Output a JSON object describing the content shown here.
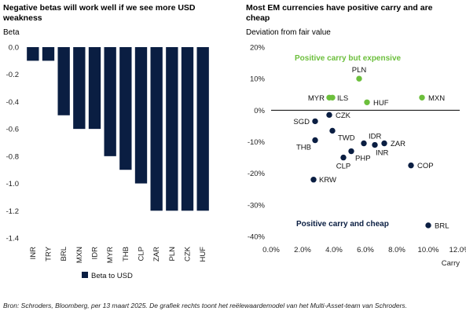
{
  "colors": {
    "navy": "#0a1e42",
    "green": "#6cbf3c",
    "axis": "#888888",
    "zero": "#000000"
  },
  "left": {
    "title": "Negative betas will work well if we see more USD weakness",
    "ylabel": "Beta",
    "legend": "Beta to USD"
  },
  "right": {
    "title": "Most EM currencies have positive carry and are cheap",
    "ylabel": "Deviation from fair value",
    "xlabel": "Carry",
    "annotation_expensive": "Positive carry but expensive",
    "annotation_cheap": "Positive carry and cheap"
  },
  "source": "Bron: Schroders, Bloomberg, per 13 maart 2025. De grafiek rechts toont het reëlewaardemodel van het Multi-Asset-team van Schroders.",
  "chart_data": [
    {
      "type": "bar",
      "title": "Negative betas will work well if we see more USD weakness",
      "ylabel": "Beta",
      "ylim": [
        -1.4,
        0.0
      ],
      "yticks": [
        0.0,
        -0.2,
        -0.4,
        -0.6,
        -0.8,
        -1.0,
        -1.2,
        -1.4
      ],
      "ytick_labels": [
        "0.0",
        "-0.2",
        "-0.4",
        "-0.6",
        "-0.8",
        "-1.0",
        "-1.2",
        "-1.4"
      ],
      "categories": [
        "INR",
        "TRY",
        "BRL",
        "MXN",
        "IDR",
        "MYR",
        "THB",
        "CLP",
        "ZAR",
        "PLN",
        "CZK",
        "HUF"
      ],
      "series": [
        {
          "name": "Beta to USD",
          "values": [
            -0.1,
            -0.1,
            -0.5,
            -0.6,
            -0.6,
            -0.8,
            -0.9,
            -1.0,
            -1.2,
            -1.2,
            -1.2,
            -1.2
          ]
        }
      ],
      "legend": "bottom",
      "grid": false
    },
    {
      "type": "scatter",
      "title": "Most EM currencies have positive carry and are cheap",
      "xlabel": "Carry",
      "ylabel": "Deviation from fair value",
      "xlim": [
        0.0,
        12.0
      ],
      "ylim": [
        -40,
        20
      ],
      "xticks": [
        0,
        2,
        4,
        6,
        8,
        10,
        12
      ],
      "xtick_labels": [
        "0.0%",
        "2.0%",
        "4.0%",
        "6.0%",
        "8.0%",
        "10.0%",
        "12.0%"
      ],
      "yticks": [
        20,
        10,
        0,
        -10,
        -20,
        -30,
        -40
      ],
      "ytick_labels": [
        "20%",
        "10%",
        "0%",
        "-10%",
        "-20%",
        "-30%",
        "-40%"
      ],
      "grid": false,
      "points": [
        {
          "label": "PLN",
          "x": 5.6,
          "y": 10,
          "group": "expensive"
        },
        {
          "label": "MYR",
          "x": 3.7,
          "y": 4,
          "group": "expensive"
        },
        {
          "label": "ILS",
          "x": 3.9,
          "y": 4,
          "group": "expensive"
        },
        {
          "label": "HUF",
          "x": 6.1,
          "y": 2.5,
          "group": "expensive"
        },
        {
          "label": "MXN",
          "x": 9.6,
          "y": 4,
          "group": "expensive"
        },
        {
          "label": "CZK",
          "x": 3.7,
          "y": -1.5,
          "group": "cheap"
        },
        {
          "label": "SGD",
          "x": 2.8,
          "y": -3.5,
          "group": "cheap"
        },
        {
          "label": "TWD",
          "x": 3.9,
          "y": -6.5,
          "group": "cheap"
        },
        {
          "label": "THB",
          "x": 2.8,
          "y": -9.5,
          "group": "cheap"
        },
        {
          "label": "IDR",
          "x": 5.9,
          "y": -10.5,
          "group": "cheap"
        },
        {
          "label": "ZAR",
          "x": 7.2,
          "y": -10.5,
          "group": "cheap"
        },
        {
          "label": "INR",
          "x": 6.6,
          "y": -11,
          "group": "cheap"
        },
        {
          "label": "PHP",
          "x": 5.1,
          "y": -13,
          "group": "cheap"
        },
        {
          "label": "CLP",
          "x": 4.6,
          "y": -15,
          "group": "cheap"
        },
        {
          "label": "COP",
          "x": 8.9,
          "y": -17.5,
          "group": "cheap"
        },
        {
          "label": "KRW",
          "x": 2.7,
          "y": -22,
          "group": "cheap"
        },
        {
          "label": "BRL",
          "x": 10.0,
          "y": -36.5,
          "group": "cheap"
        }
      ]
    }
  ]
}
